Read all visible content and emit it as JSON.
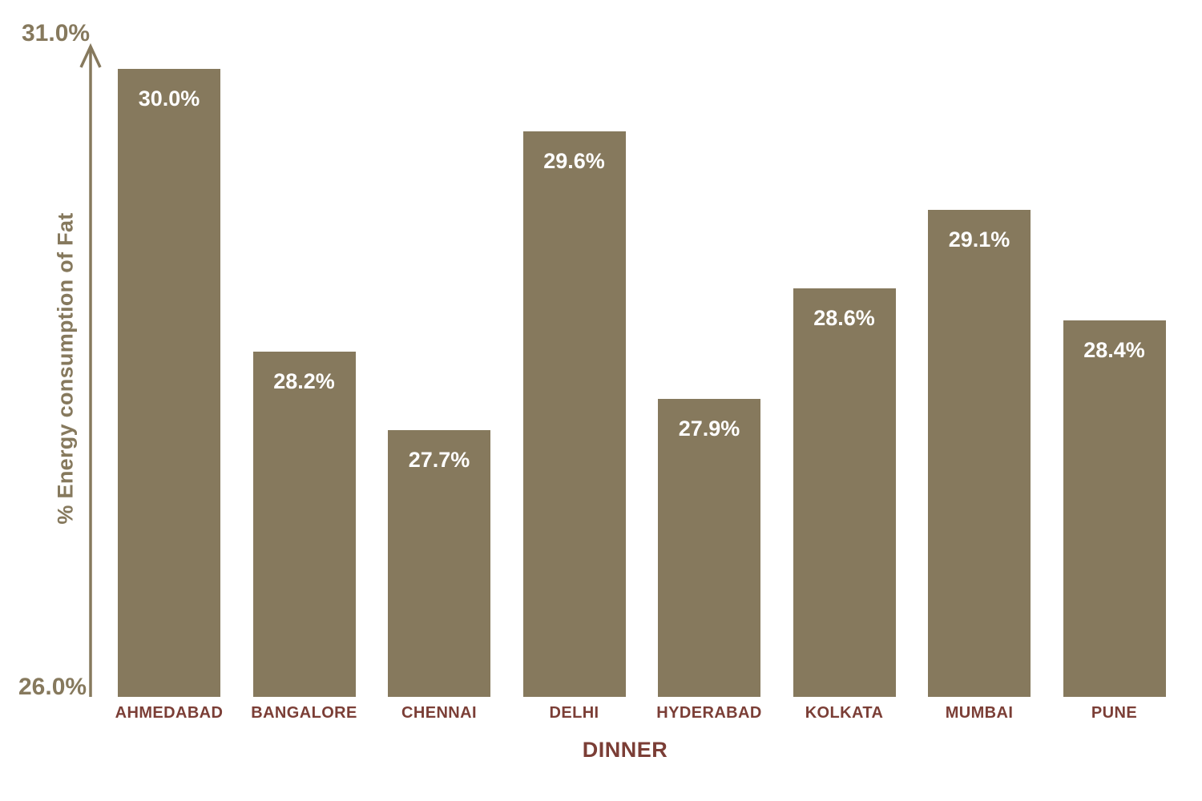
{
  "chart_data": {
    "type": "bar",
    "title": "",
    "xlabel": "DINNER",
    "ylabel": "% Energy consumption of Fat",
    "categories": [
      "AHMEDABAD",
      "BANGALORE",
      "CHENNAI",
      "DELHI",
      "HYDERABAD",
      "KOLKATA",
      "MUMBAI",
      "PUNE"
    ],
    "values": [
      30.0,
      28.2,
      27.7,
      29.6,
      27.9,
      28.6,
      29.1,
      28.4
    ],
    "value_labels": [
      "30.0%",
      "28.2%",
      "27.7%",
      "29.6%",
      "27.9%",
      "28.6%",
      "29.1%",
      "28.4%"
    ],
    "ylim": [
      26.0,
      31.0
    ],
    "y_axis_min_label": "26.0%",
    "y_axis_max_label": "31.0%",
    "grid": false,
    "legend": false,
    "colors": {
      "bar": "#86795D",
      "axis": "#86795D",
      "value_label": "#FFFFFF",
      "category_label": "#7B3E36"
    }
  }
}
